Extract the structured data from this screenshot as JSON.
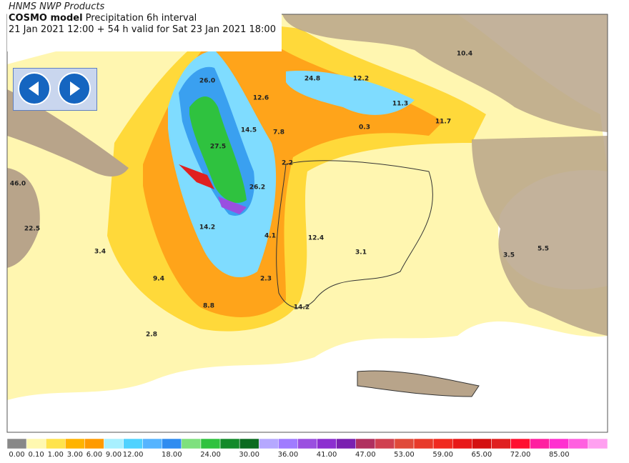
{
  "header": {
    "source": "HNMS NWP Products",
    "model": "COSMO model",
    "product": "Precipitation 6h interval",
    "validity": "21 Jan 2021 12:00 + 54 h valid for Sat 23 Jan 2021 18:00"
  },
  "map_labels": [
    "10.4",
    "24.8",
    "12.2",
    "11.3",
    "11.7",
    "0.3",
    "12.6",
    "14.5",
    "7.8",
    "2.2",
    "46.0",
    "22.5",
    "3.4",
    "9.4",
    "14.2",
    "4.1",
    "12.4",
    "3.1",
    "3.5",
    "5.5",
    "2.3",
    "8.8",
    "14.2",
    "2.8",
    "26.2",
    "27.5",
    "26.0"
  ],
  "legend": {
    "labels": [
      "0.00",
      "0.10",
      "1.00",
      "3.00",
      "6.00",
      "9.00",
      "12.00",
      "18.00",
      "24.00",
      "30.00",
      "36.00",
      "41.00",
      "47.00",
      "53.00",
      "59.00",
      "65.00",
      "72.00",
      "85.00"
    ],
    "colors": [
      "#888888",
      "#fff8b0",
      "#ffe34d",
      "#ffb300",
      "#ff9a00",
      "#a8f0ff",
      "#4fd2ff",
      "#55b4ff",
      "#2f8cf0",
      "#7ee07e",
      "#2fc23f",
      "#138a2a",
      "#0b6b20",
      "#b5a8ff",
      "#a07cff",
      "#9a4fe0",
      "#8c2fd0",
      "#7a20b0",
      "#b03060",
      "#d04050",
      "#e04a3a",
      "#e83a2a",
      "#f02a20",
      "#e81818",
      "#d41010",
      "#e02020",
      "#ff1030",
      "#ff20a0",
      "#ff30d0",
      "#ff60e0",
      "#ffa0f0"
    ]
  }
}
